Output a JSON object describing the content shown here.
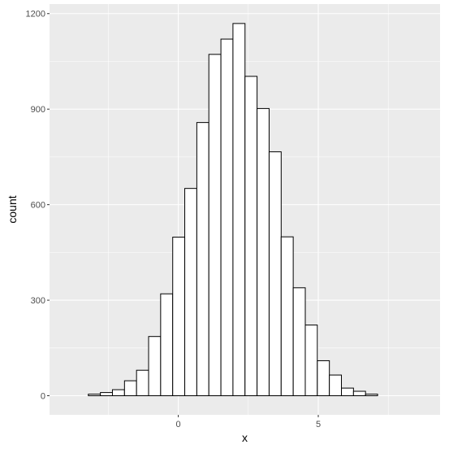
{
  "chart_data": {
    "type": "bar",
    "subtype": "histogram",
    "xlabel": "x",
    "ylabel": "count",
    "xlim": [
      -4.6,
      9.35
    ],
    "ylim": [
      -60,
      1230
    ],
    "grid": true,
    "panel_background": "#ebebeb",
    "grid_color": "#ffffff",
    "bar_fill": "#ffffff",
    "bar_outline": "#000000",
    "x_ticks": [
      {
        "value": 0,
        "label": "0"
      },
      {
        "value": 5,
        "label": "5"
      }
    ],
    "x_minor_ticks": [
      -2.5,
      2.5,
      7.5
    ],
    "y_ticks": [
      {
        "value": 0,
        "label": "0"
      },
      {
        "value": 300,
        "label": "300"
      },
      {
        "value": 600,
        "label": "600"
      },
      {
        "value": 900,
        "label": "900"
      },
      {
        "value": 1200,
        "label": "1200"
      }
    ],
    "y_minor_ticks": [
      150,
      450,
      750,
      1050
    ],
    "bin_width": 0.4305,
    "bins": [
      {
        "x0": -4.075,
        "count": 0
      },
      {
        "x0": -3.645,
        "count": 0
      },
      {
        "x0": -3.214,
        "count": 5
      },
      {
        "x0": -2.783,
        "count": 10
      },
      {
        "x0": -2.353,
        "count": 19
      },
      {
        "x0": -1.922,
        "count": 47
      },
      {
        "x0": -1.492,
        "count": 80
      },
      {
        "x0": -1.061,
        "count": 186
      },
      {
        "x0": -0.631,
        "count": 320
      },
      {
        "x0": -0.2,
        "count": 498
      },
      {
        "x0": 0.23,
        "count": 651
      },
      {
        "x0": 0.661,
        "count": 858
      },
      {
        "x0": 1.091,
        "count": 1072
      },
      {
        "x0": 1.522,
        "count": 1120
      },
      {
        "x0": 1.952,
        "count": 1169
      },
      {
        "x0": 2.383,
        "count": 1003
      },
      {
        "x0": 2.813,
        "count": 902
      },
      {
        "x0": 3.244,
        "count": 766
      },
      {
        "x0": 3.674,
        "count": 499
      },
      {
        "x0": 4.105,
        "count": 339
      },
      {
        "x0": 4.535,
        "count": 222
      },
      {
        "x0": 4.966,
        "count": 110
      },
      {
        "x0": 5.396,
        "count": 65
      },
      {
        "x0": 5.827,
        "count": 24
      },
      {
        "x0": 6.257,
        "count": 14
      },
      {
        "x0": 6.688,
        "count": 5
      },
      {
        "x0": 7.118,
        "count": 0
      },
      {
        "x0": 7.549,
        "count": 0
      },
      {
        "x0": 7.979,
        "count": 0
      },
      {
        "x0": 8.41,
        "count": 0
      }
    ]
  }
}
